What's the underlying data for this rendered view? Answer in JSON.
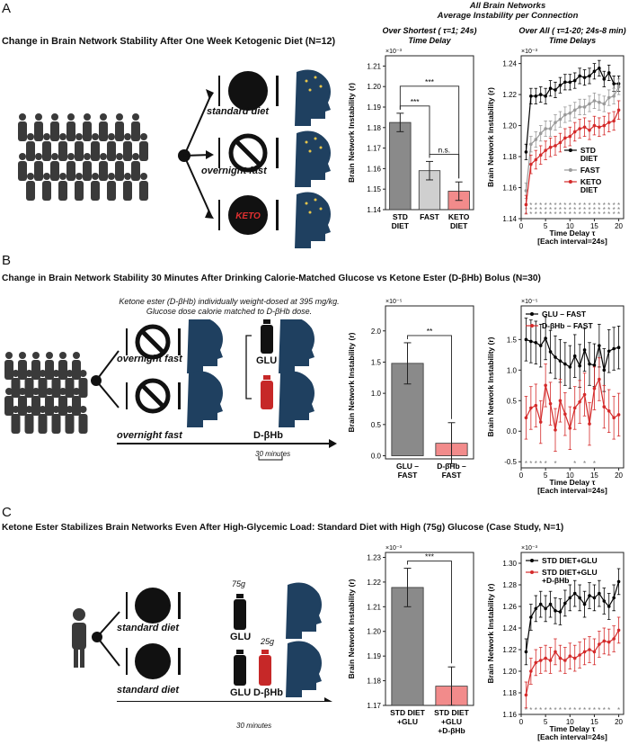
{
  "panels": [
    {
      "label": "A",
      "title": "Change in Brain Network Stability After One Week Ketogenic Diet (N=12)",
      "header": [
        "All Brain Networks",
        "Average Instability per Connection"
      ],
      "scheme": {
        "conditions": [
          "standard diet",
          "overnight fast"
        ],
        "keto_badge": "KETO"
      }
    },
    {
      "label": "B",
      "title": "Change in Brain Network Stability 30 Minutes After Drinking Calorie-Matched Glucose vs Ketone Ester (D-βHb) Bolus (N=30)",
      "scheme": {
        "conditions": [
          "overnight fast",
          "overnight fast"
        ],
        "note_line1": "Ketone ester (D-βHb) individually weight-dosed at 395 mg/kg.",
        "note_line2": "Glucose dose calorie matched to D-βHb dose.",
        "bottle1": "GLU",
        "bottle2": "D-βHb",
        "time": "30 minutes"
      }
    },
    {
      "label": "C",
      "title": "Ketone Ester Stabilizes Brain Networks Even After High-Glycemic Load: Standard Diet with High (75g) Glucose (Case Study, N=1)",
      "scheme": {
        "conditions": [
          "standard diet",
          "standard diet"
        ],
        "dose1": "75g",
        "dose2": "25g",
        "bottle1": "GLU",
        "bottle2a": "GLU",
        "bottle2b": "D-βHb",
        "time": "30 minutes"
      }
    }
  ],
  "chart_data": [
    {
      "id": "A-bar",
      "type": "bar",
      "title_lines": [
        "Over Shortest ( τ=1; 24s)",
        "Time Delay"
      ],
      "ylabel": "Brain Network Instability (r)",
      "exponent": "×10⁻³",
      "ylim": [
        1.14,
        1.215
      ],
      "yticks": [
        1.14,
        1.15,
        1.16,
        1.17,
        1.18,
        1.19,
        1.2,
        1.21
      ],
      "ytick_labels": [
        "1.14",
        "1.15",
        "1.16",
        "1.17",
        "1.18",
        "1.19",
        "1.20",
        "1.21"
      ],
      "categories": [
        [
          "STD",
          "DIET"
        ],
        [
          "FAST"
        ],
        [
          "KETO",
          "DIET"
        ]
      ],
      "values": [
        1.1825,
        1.159,
        1.149
      ],
      "errors": [
        0.0045,
        0.0045,
        0.0045
      ],
      "colors": [
        "#8a8a8a",
        "#cfcfcf",
        "#f28b8b"
      ],
      "significance": [
        {
          "from": 0,
          "to": 1,
          "label": "***"
        },
        {
          "from": 1,
          "to": 2,
          "label": "n.s."
        },
        {
          "from": 0,
          "to": 2,
          "label": "***"
        }
      ]
    },
    {
      "id": "A-line",
      "type": "line",
      "title_lines": [
        "Over All ( τ=1-20; 24s-8 min)",
        "Time Delays"
      ],
      "ylabel": "Brain Network Instability (r)",
      "exponent": "×10⁻³",
      "xlabel_lines": [
        "Time Delay τ",
        "[Each interval=24s]"
      ],
      "xlim": [
        0,
        21
      ],
      "ylim": [
        1.14,
        1.245
      ],
      "xticks": [
        0,
        5,
        10,
        15,
        20
      ],
      "yticks": [
        1.14,
        1.16,
        1.18,
        1.2,
        1.22,
        1.24
      ],
      "ytick_labels": [
        "1.14",
        "1.16",
        "1.18",
        "1.20",
        "1.22",
        "1.24"
      ],
      "legend_position": "lower-right",
      "x": [
        1,
        2,
        3,
        4,
        5,
        6,
        7,
        8,
        9,
        10,
        11,
        12,
        13,
        14,
        15,
        16,
        17,
        18,
        19,
        20
      ],
      "series": [
        {
          "name": "STD DIET",
          "color": "#000000",
          "values": [
            1.183,
            1.219,
            1.219,
            1.22,
            1.219,
            1.224,
            1.223,
            1.226,
            1.228,
            1.228,
            1.229,
            1.232,
            1.231,
            1.232,
            1.235,
            1.237,
            1.23,
            1.234,
            1.227,
            1.227
          ],
          "err": 0.005
        },
        {
          "name": "FAST",
          "color": "#9a9a9a",
          "values": [
            1.158,
            1.188,
            1.191,
            1.195,
            1.198,
            1.198,
            1.202,
            1.204,
            1.207,
            1.208,
            1.21,
            1.212,
            1.212,
            1.214,
            1.216,
            1.215,
            1.214,
            1.218,
            1.219,
            1.225
          ],
          "err": 0.005
        },
        {
          "name": "KETO DIET",
          "color": "#d42a2a",
          "values": [
            1.149,
            1.175,
            1.178,
            1.181,
            1.184,
            1.186,
            1.187,
            1.189,
            1.192,
            1.193,
            1.196,
            1.198,
            1.199,
            1.197,
            1.2,
            1.199,
            1.2,
            1.202,
            1.203,
            1.21
          ],
          "err": 0.006
        }
      ],
      "legend_lines": [
        [
          "STD",
          "DIET"
        ],
        [
          "FAST"
        ],
        [
          "KETO",
          "DIET"
        ]
      ],
      "significance_rows": 3
    },
    {
      "id": "B-bar",
      "type": "bar",
      "ylabel": "Brain Network Instability (r)",
      "exponent": "×10⁻⁵",
      "ylim": [
        -0.05,
        2.4
      ],
      "yticks": [
        0,
        0.5,
        1,
        1.5,
        2
      ],
      "ytick_labels": [
        "0.0",
        "0.5",
        "1.0",
        "1.5",
        "2.0"
      ],
      "categories": [
        [
          "GLU –",
          "FAST"
        ],
        [
          "D-βHb –",
          "FAST"
        ]
      ],
      "values": [
        1.48,
        0.2
      ],
      "errors": [
        0.33,
        0.33
      ],
      "colors": [
        "#8a8a8a",
        "#f28b8b"
      ],
      "significance": [
        {
          "from": 0,
          "to": 1,
          "label": "**"
        }
      ]
    },
    {
      "id": "B-line",
      "type": "line",
      "ylabel": "Brain Network Instability (r)",
      "exponent": "×10⁻⁵",
      "xlabel_lines": [
        "Time Delay τ",
        "[Each interval=24s]"
      ],
      "xlim": [
        0,
        21
      ],
      "ylim": [
        -0.6,
        2.05
      ],
      "xticks": [
        0,
        5,
        10,
        15,
        20
      ],
      "yticks": [
        -0.5,
        0,
        0.5,
        1,
        1.5
      ],
      "ytick_labels": [
        "-0.5",
        "0.0",
        "0.5",
        "1.0",
        "1.5"
      ],
      "legend_position": "top-left",
      "x": [
        1,
        2,
        3,
        4,
        5,
        6,
        7,
        8,
        9,
        10,
        11,
        12,
        13,
        14,
        15,
        16,
        17,
        18,
        19,
        20
      ],
      "series": [
        {
          "name": "GLU – FAST",
          "color": "#000000",
          "values": [
            1.5,
            1.47,
            1.45,
            1.4,
            1.52,
            1.3,
            1.21,
            1.15,
            1.1,
            1.05,
            1.23,
            1.07,
            1.33,
            1.1,
            1.08,
            1.4,
            1.0,
            1.31,
            1.35,
            1.37
          ],
          "err": 0.35
        },
        {
          "name": "D-βHb – FAST",
          "color": "#d42a2a",
          "values": [
            0.22,
            0.38,
            0.42,
            0.15,
            0.75,
            0.45,
            0.02,
            0.5,
            0.28,
            0.05,
            0.38,
            0.48,
            0.6,
            0.12,
            0.7,
            0.85,
            0.4,
            0.33,
            0.22,
            0.27
          ],
          "err": 0.35
        }
      ],
      "legend_lines": [
        [
          "GLU – FAST"
        ],
        [
          "D-βHb – FAST"
        ]
      ],
      "significance_marks": [
        "*",
        "*",
        "*",
        "*",
        "*",
        "",
        "*",
        "",
        "",
        "",
        "*",
        "",
        "*",
        "",
        "*",
        "",
        "",
        "",
        "",
        ""
      ]
    },
    {
      "id": "C-bar",
      "type": "bar",
      "ylabel": "Brain Network Instability (r)",
      "exponent": "×10⁻³",
      "ylim": [
        1.17,
        1.232
      ],
      "yticks": [
        1.17,
        1.18,
        1.19,
        1.2,
        1.21,
        1.22,
        1.23
      ],
      "ytick_labels": [
        "1.17",
        "1.18",
        "1.19",
        "1.20",
        "1.21",
        "1.22",
        "1.23"
      ],
      "categories": [
        [
          "STD DIET",
          "+GLU"
        ],
        [
          "STD DIET",
          "+GLU",
          "+D-βHb"
        ]
      ],
      "values": [
        1.2178,
        1.1778
      ],
      "errors": [
        0.0078,
        0.0078
      ],
      "colors": [
        "#8a8a8a",
        "#f28b8b"
      ],
      "significance": [
        {
          "from": 0,
          "to": 1,
          "label": "***"
        }
      ]
    },
    {
      "id": "C-line",
      "type": "line",
      "ylabel": "Brain Network Instability (r)",
      "exponent": "×10⁻³",
      "xlabel_lines": [
        "Time Delay τ",
        "[Each interval=24s]"
      ],
      "xlim": [
        0,
        21
      ],
      "ylim": [
        1.16,
        1.31
      ],
      "xticks": [
        0,
        5,
        10,
        15,
        20
      ],
      "yticks": [
        1.16,
        1.18,
        1.2,
        1.22,
        1.24,
        1.26,
        1.28,
        1.3
      ],
      "ytick_labels": [
        "1.16",
        "1.18",
        "1.20",
        "1.22",
        "1.24",
        "1.26",
        "1.28",
        "1.30"
      ],
      "legend_position": "top-left",
      "x": [
        1,
        2,
        3,
        4,
        5,
        6,
        7,
        8,
        9,
        10,
        11,
        12,
        13,
        14,
        15,
        16,
        17,
        18,
        19,
        20
      ],
      "series": [
        {
          "name": "STD DIET+GLU",
          "color": "#000000",
          "values": [
            1.218,
            1.25,
            1.258,
            1.262,
            1.258,
            1.262,
            1.256,
            1.255,
            1.263,
            1.268,
            1.272,
            1.268,
            1.262,
            1.27,
            1.268,
            1.272,
            1.265,
            1.26,
            1.268,
            1.283
          ],
          "err": 0.012
        },
        {
          "name": "STD DIET+GLU +D-βHb",
          "color": "#d42a2a",
          "values": [
            1.178,
            1.2,
            1.208,
            1.21,
            1.212,
            1.21,
            1.218,
            1.212,
            1.21,
            1.214,
            1.212,
            1.215,
            1.218,
            1.22,
            1.218,
            1.225,
            1.228,
            1.227,
            1.23,
            1.238
          ],
          "err": 0.012
        }
      ],
      "legend_lines": [
        [
          "STD DIET+GLU"
        ],
        [
          "STD DIET+GLU",
          "+D-βHb"
        ]
      ],
      "significance_marks": [
        "*",
        "*",
        "*",
        "*",
        "*",
        "*",
        "*",
        "*",
        "*",
        "*",
        "*",
        "*",
        "*",
        "*",
        "*",
        "*",
        "*",
        "*",
        "",
        "*"
      ]
    }
  ]
}
